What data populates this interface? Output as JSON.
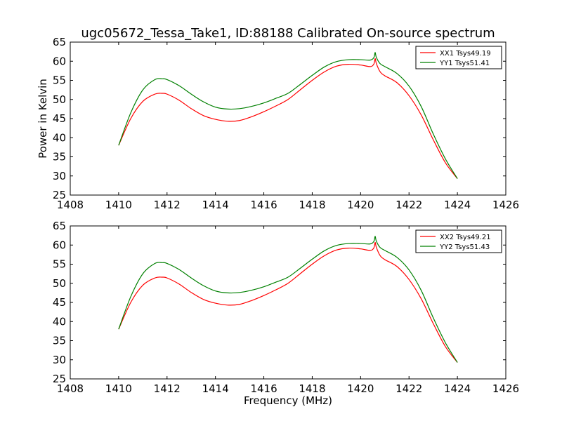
{
  "figure": {
    "title": "ugc05672_Tessa_Take1, ID:88188 Calibrated On-source spectrum"
  },
  "chart_data": [
    {
      "type": "line",
      "title": "ugc05672_Tessa_Take1, ID:88188 Calibrated On-source spectrum",
      "xlabel": "",
      "ylabel": "Power in Kelvin",
      "xlim": [
        1408,
        1426
      ],
      "ylim": [
        25,
        65
      ],
      "xticks": [
        1408,
        1410,
        1412,
        1414,
        1416,
        1418,
        1420,
        1422,
        1424,
        1426
      ],
      "yticks": [
        25,
        30,
        35,
        40,
        45,
        50,
        55,
        60,
        65
      ],
      "grid": false,
      "legend_position": "top-right",
      "series": [
        {
          "name": "XX1 Tsys49.19",
          "color": "#ff0000",
          "x": [
            1410.0,
            1410.5,
            1411.0,
            1411.5,
            1411.8,
            1412.0,
            1412.5,
            1413.0,
            1413.5,
            1414.0,
            1414.5,
            1415.0,
            1415.5,
            1416.0,
            1416.5,
            1417.0,
            1417.5,
            1418.0,
            1418.5,
            1419.0,
            1419.5,
            1420.0,
            1420.4,
            1420.55,
            1420.6,
            1420.65,
            1420.8,
            1421.0,
            1421.5,
            1422.0,
            1422.5,
            1423.0,
            1423.5,
            1424.0
          ],
          "y": [
            38.0,
            45.0,
            49.5,
            51.4,
            51.6,
            51.4,
            49.8,
            47.6,
            45.8,
            44.8,
            44.3,
            44.5,
            45.5,
            46.8,
            48.3,
            50.0,
            52.5,
            55.0,
            57.2,
            58.7,
            59.2,
            59.0,
            58.6,
            59.3,
            60.7,
            59.4,
            57.3,
            56.2,
            54.4,
            51.0,
            46.0,
            39.5,
            33.5,
            29.3
          ]
        },
        {
          "name": "YY1 Tsys51.41",
          "color": "#008000",
          "x": [
            1410.0,
            1410.5,
            1411.0,
            1411.5,
            1411.8,
            1412.0,
            1412.5,
            1413.0,
            1413.5,
            1414.0,
            1414.5,
            1415.0,
            1415.5,
            1416.0,
            1416.5,
            1417.0,
            1417.5,
            1418.0,
            1418.5,
            1419.0,
            1419.5,
            1420.0,
            1420.4,
            1420.55,
            1420.6,
            1420.65,
            1420.8,
            1421.0,
            1421.5,
            1422.0,
            1422.5,
            1423.0,
            1423.5,
            1424.0
          ],
          "y": [
            38.0,
            46.5,
            52.5,
            55.2,
            55.4,
            55.2,
            53.6,
            51.4,
            49.4,
            48.0,
            47.5,
            47.6,
            48.2,
            49.1,
            50.3,
            51.6,
            53.9,
            56.3,
            58.5,
            59.9,
            60.4,
            60.4,
            60.3,
            61.0,
            62.3,
            61.0,
            59.4,
            58.6,
            56.8,
            53.5,
            48.2,
            41.0,
            34.5,
            29.3
          ]
        }
      ]
    },
    {
      "type": "line",
      "title": "",
      "xlabel": "Frequency (MHz)",
      "ylabel": "",
      "xlim": [
        1408,
        1426
      ],
      "ylim": [
        25,
        65
      ],
      "xticks": [
        1408,
        1410,
        1412,
        1414,
        1416,
        1418,
        1420,
        1422,
        1424,
        1426
      ],
      "yticks": [
        25,
        30,
        35,
        40,
        45,
        50,
        55,
        60,
        65
      ],
      "grid": false,
      "legend_position": "top-right",
      "series": [
        {
          "name": "XX2 Tsys49.21",
          "color": "#ff0000",
          "x": [
            1410.0,
            1410.5,
            1411.0,
            1411.5,
            1411.8,
            1412.0,
            1412.5,
            1413.0,
            1413.5,
            1414.0,
            1414.5,
            1415.0,
            1415.5,
            1416.0,
            1416.5,
            1417.0,
            1417.5,
            1418.0,
            1418.5,
            1419.0,
            1419.5,
            1420.0,
            1420.4,
            1420.55,
            1420.6,
            1420.65,
            1420.8,
            1421.0,
            1421.5,
            1422.0,
            1422.5,
            1423.0,
            1423.5,
            1424.0
          ],
          "y": [
            38.0,
            45.0,
            49.5,
            51.4,
            51.6,
            51.4,
            49.8,
            47.6,
            45.8,
            44.8,
            44.3,
            44.5,
            45.5,
            46.8,
            48.3,
            50.0,
            52.5,
            55.0,
            57.2,
            58.7,
            59.2,
            59.0,
            58.6,
            59.3,
            60.7,
            59.4,
            57.3,
            56.2,
            54.4,
            51.0,
            46.0,
            39.5,
            33.5,
            29.3
          ]
        },
        {
          "name": "YY2 Tsys51.43",
          "color": "#008000",
          "x": [
            1410.0,
            1410.5,
            1411.0,
            1411.5,
            1411.8,
            1412.0,
            1412.5,
            1413.0,
            1413.5,
            1414.0,
            1414.5,
            1415.0,
            1415.5,
            1416.0,
            1416.5,
            1417.0,
            1417.5,
            1418.0,
            1418.5,
            1419.0,
            1419.5,
            1420.0,
            1420.4,
            1420.55,
            1420.6,
            1420.65,
            1420.8,
            1421.0,
            1421.5,
            1422.0,
            1422.5,
            1423.0,
            1423.5,
            1424.0
          ],
          "y": [
            38.0,
            46.5,
            52.5,
            55.2,
            55.4,
            55.2,
            53.6,
            51.4,
            49.4,
            48.0,
            47.5,
            47.6,
            48.2,
            49.1,
            50.3,
            51.6,
            53.9,
            56.3,
            58.5,
            59.9,
            60.4,
            60.4,
            60.3,
            61.0,
            62.3,
            61.0,
            59.4,
            58.6,
            56.8,
            53.5,
            48.2,
            41.0,
            34.5,
            29.3
          ]
        }
      ]
    }
  ]
}
